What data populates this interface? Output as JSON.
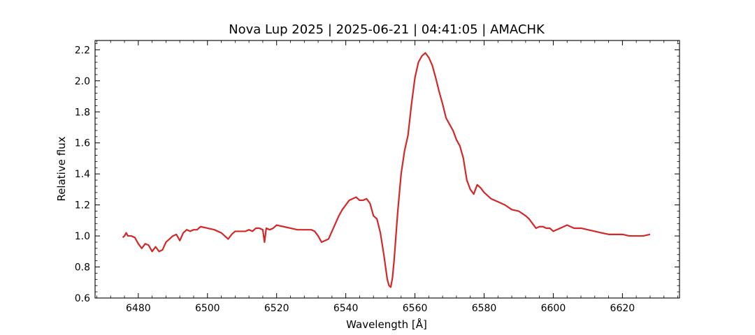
{
  "chart_data": {
    "type": "line",
    "title": "Nova Lup 2025 | 2025-06-21 | 04:41:05 | AMACHK",
    "xlabel": "Wavelength [Å]",
    "ylabel": "Relative flux",
    "xlim": [
      6467.5,
      6636.5
    ],
    "ylim": [
      0.6,
      2.26
    ],
    "xticks": [
      6480,
      6500,
      6520,
      6540,
      6560,
      6580,
      6600,
      6620
    ],
    "yticks": [
      0.6,
      0.8,
      1.0,
      1.2,
      1.4,
      1.6,
      1.8,
      2.0,
      2.2
    ],
    "xtick_labels": [
      "6480",
      "6500",
      "6520",
      "6540",
      "6560",
      "6580",
      "6600",
      "6620"
    ],
    "ytick_labels": [
      "0.6",
      "0.8",
      "1.0",
      "1.2",
      "1.4",
      "1.6",
      "1.8",
      "2.0",
      "2.2"
    ],
    "grid": false,
    "color": "#d62728",
    "series": [
      {
        "x": [
          6475.5,
          6476.0,
          6476.5,
          6477.0,
          6478.0,
          6479.0,
          6480.0,
          6481.0,
          6482.0,
          6483.0,
          6484.0,
          6485.0,
          6486.0,
          6487.0,
          6488.0,
          6489.0,
          6490.0,
          6491.0,
          6492.0,
          6493.0,
          6494.0,
          6495.0,
          6496.0,
          6497.0,
          6498.0,
          6500.0,
          6502.0,
          6504.0,
          6505.0,
          6506.0,
          6507.0,
          6508.0,
          6510.0,
          6511.0,
          6512.0,
          6513.0,
          6514.0,
          6515.0,
          6516.0,
          6516.5,
          6517.0,
          6518.0,
          6519.0,
          6520.0,
          6522.0,
          6524.0,
          6526.0,
          6528.0,
          6530.0,
          6531.0,
          6532.0,
          6533.0,
          6534.0,
          6535.0,
          6536.0,
          6537.0,
          6538.0,
          6539.0,
          6540.0,
          6541.0,
          6542.0,
          6543.0,
          6544.0,
          6545.0,
          6546.0,
          6547.0,
          6548.0,
          6549.0,
          6550.0,
          6551.0,
          6552.0,
          6552.5,
          6553.0,
          6553.5,
          6554.0,
          6555.0,
          6556.0,
          6557.0,
          6558.0,
          6558.5,
          6559.0,
          6560.0,
          6561.0,
          6562.0,
          6563.0,
          6564.0,
          6565.0,
          6566.0,
          6567.0,
          6568.0,
          6569.0,
          6570.0,
          6571.0,
          6572.0,
          6573.0,
          6574.0,
          6575.0,
          6576.0,
          6577.0,
          6578.0,
          6579.0,
          6580.0,
          6582.0,
          6584.0,
          6586.0,
          6588.0,
          6590.0,
          6592.0,
          6593.0,
          6594.0,
          6595.0,
          6596.0,
          6597.0,
          6598.0,
          6599.0,
          6600.0,
          6602.0,
          6604.0,
          6606.0,
          6608.0,
          6610.0,
          6612.0,
          6614.0,
          6616.0,
          6618.0,
          6620.0,
          6622.0,
          6624.0,
          6626.0,
          6628.0
        ],
        "y": [
          0.99,
          1.0,
          1.02,
          1.0,
          1.0,
          0.99,
          0.95,
          0.92,
          0.95,
          0.94,
          0.9,
          0.93,
          0.9,
          0.91,
          0.96,
          0.98,
          1.0,
          1.01,
          0.97,
          1.02,
          1.04,
          1.03,
          1.04,
          1.04,
          1.06,
          1.05,
          1.04,
          1.02,
          1.0,
          0.98,
          1.01,
          1.03,
          1.03,
          1.03,
          1.04,
          1.03,
          1.05,
          1.05,
          1.04,
          0.96,
          1.05,
          1.04,
          1.05,
          1.07,
          1.06,
          1.05,
          1.04,
          1.04,
          1.04,
          1.03,
          1.0,
          0.96,
          0.97,
          0.98,
          1.03,
          1.08,
          1.13,
          1.17,
          1.2,
          1.23,
          1.24,
          1.25,
          1.23,
          1.23,
          1.24,
          1.21,
          1.13,
          1.11,
          1.02,
          0.88,
          0.72,
          0.68,
          0.67,
          0.73,
          0.85,
          1.15,
          1.4,
          1.55,
          1.65,
          1.75,
          1.85,
          2.02,
          2.12,
          2.16,
          2.18,
          2.15,
          2.1,
          2.02,
          1.93,
          1.85,
          1.76,
          1.72,
          1.68,
          1.62,
          1.58,
          1.5,
          1.36,
          1.3,
          1.27,
          1.33,
          1.31,
          1.28,
          1.24,
          1.22,
          1.2,
          1.17,
          1.16,
          1.13,
          1.11,
          1.08,
          1.05,
          1.06,
          1.06,
          1.05,
          1.05,
          1.03,
          1.05,
          1.07,
          1.05,
          1.05,
          1.04,
          1.03,
          1.02,
          1.01,
          1.01,
          1.01,
          1.0,
          1.0,
          1.0,
          1.01
        ]
      }
    ]
  }
}
